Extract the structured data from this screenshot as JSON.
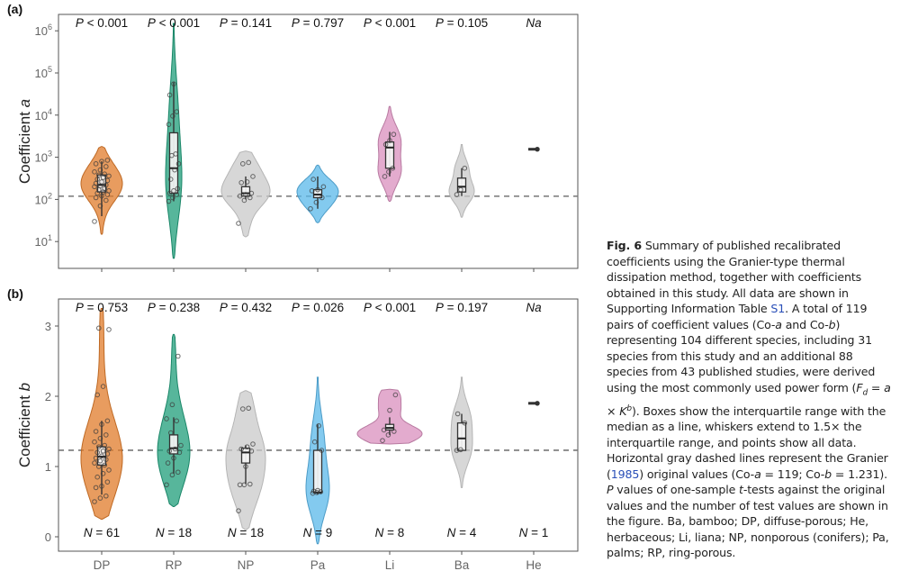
{
  "chart_data": [
    {
      "panel": "(a)",
      "type": "violin",
      "ylabel": "Coefficient a",
      "yscale": "log10",
      "ylim": [
        1,
        1000000
      ],
      "yticks": [
        10,
        100,
        1000,
        10000,
        100000,
        1000000
      ],
      "ytick_labels": [
        "10^1",
        "10^2",
        "10^3",
        "10^4",
        "10^5",
        "10^6"
      ],
      "categories": [
        "DP",
        "RP",
        "NP",
        "Pa",
        "Li",
        "Ba",
        "He"
      ],
      "reference_line": 119,
      "annotations_top": [
        "P < 0.001",
        "P < 0.001",
        "P = 0.141",
        "P = 0.797",
        "P < 0.001",
        "P = 0.105",
        "Na"
      ],
      "colors": [
        "#e07b2a",
        "#1f9e7a",
        "#c9c9c9",
        "#5ab8ea",
        "#d98fbd",
        "#c9c9c9",
        "#333333"
      ],
      "groups": [
        {
          "name": "DP",
          "q1": 150,
          "median": 220,
          "q3": 380,
          "whisker_low": 40,
          "whisker_high": 800,
          "violin_min": 15,
          "violin_max": 1800,
          "points": [
            30,
            70,
            95,
            110,
            120,
            130,
            140,
            150,
            160,
            170,
            180,
            200,
            210,
            220,
            240,
            260,
            280,
            300,
            330,
            360,
            380,
            400,
            450,
            500,
            600,
            700,
            800,
            850
          ]
        },
        {
          "name": "RP",
          "q1": 140,
          "median": 550,
          "q3": 3800,
          "whisker_low": 90,
          "whisker_high": 60000,
          "violin_min": 4,
          "violin_max": 1500000,
          "points": [
            90,
            110,
            130,
            140,
            160,
            180,
            300,
            500,
            700,
            1100,
            1200,
            6000,
            9500,
            12000,
            30000,
            55000
          ]
        },
        {
          "name": "NP",
          "q1": 120,
          "median": 140,
          "q3": 200,
          "whisker_low": 100,
          "whisker_high": 350,
          "violin_min": 13,
          "violin_max": 1400,
          "points": [
            27,
            95,
            110,
            120,
            130,
            140,
            250,
            260,
            350,
            700,
            750
          ]
        },
        {
          "name": "Pa",
          "q1": 110,
          "median": 130,
          "q3": 170,
          "whisker_low": 60,
          "whisker_high": 350,
          "violin_min": 28,
          "violin_max": 650,
          "points": [
            60,
            85,
            110,
            160,
            170,
            200,
            300
          ]
        },
        {
          "name": "Li",
          "q1": 550,
          "median": 1700,
          "q3": 2300,
          "whisker_low": 350,
          "whisker_high": 4000,
          "violin_min": 90,
          "violin_max": 16000,
          "points": [
            350,
            450,
            550,
            2000,
            2500,
            3500
          ]
        },
        {
          "name": "Ba",
          "q1": 150,
          "median": 200,
          "q3": 320,
          "whisker_low": 120,
          "whisker_high": 550,
          "violin_min": 38,
          "violin_max": 2000,
          "points": [
            130,
            170,
            550
          ]
        },
        {
          "name": "He",
          "q1": 1550,
          "median": 1550,
          "q3": 1550,
          "whisker_low": 1550,
          "whisker_high": 1550,
          "violin_min": 1550,
          "violin_max": 1550,
          "points": [
            1550
          ]
        }
      ]
    },
    {
      "panel": "(b)",
      "type": "violin",
      "ylabel": "Coefficient b",
      "yscale": "linear",
      "ylim": [
        -0.25,
        3.3
      ],
      "yticks": [
        0,
        1,
        2,
        3
      ],
      "ytick_labels": [
        "0",
        "1",
        "2",
        "3"
      ],
      "categories": [
        "DP",
        "RP",
        "NP",
        "Pa",
        "Li",
        "Ba",
        "He"
      ],
      "reference_line": 1.231,
      "annotations_top": [
        "P = 0.753",
        "P = 0.238",
        "P = 0.432",
        "P = 0.026",
        "P < 0.001",
        "P = 0.197",
        "Na"
      ],
      "annotations_bottom": [
        "N = 61",
        "N = 18",
        "N = 18",
        "N = 9",
        "N = 8",
        "N = 4",
        "N = 1"
      ],
      "colors": [
        "#e07b2a",
        "#1f9e7a",
        "#c9c9c9",
        "#5ab8ea",
        "#d98fbd",
        "#c9c9c9",
        "#333333"
      ],
      "groups": [
        {
          "name": "DP",
          "q1": 1.02,
          "median": 1.14,
          "q3": 1.28,
          "whisker_low": 0.6,
          "whisker_high": 1.65,
          "violin_min": 0.25,
          "violin_max": 3.25,
          "points": [
            0.5,
            0.55,
            0.58,
            0.7,
            0.72,
            0.78,
            0.85,
            0.9,
            0.95,
            1.0,
            1.02,
            1.05,
            1.08,
            1.1,
            1.12,
            1.15,
            1.18,
            1.2,
            1.22,
            1.25,
            1.28,
            1.3,
            1.35,
            1.4,
            1.45,
            1.5,
            1.6,
            1.65,
            2.02,
            2.14,
            2.95,
            2.97
          ]
        },
        {
          "name": "RP",
          "q1": 1.18,
          "median": 1.26,
          "q3": 1.45,
          "whisker_low": 0.9,
          "whisker_high": 1.7,
          "violin_min": 0.43,
          "violin_max": 2.88,
          "points": [
            0.74,
            0.88,
            0.92,
            1.05,
            1.12,
            1.2,
            1.22,
            1.25,
            1.3,
            1.48,
            1.65,
            1.68,
            1.88,
            2.57
          ]
        },
        {
          "name": "NP",
          "q1": 1.05,
          "median": 1.2,
          "q3": 1.26,
          "whisker_low": 0.75,
          "whisker_high": 1.3,
          "violin_min": 0.1,
          "violin_max": 2.08,
          "points": [
            0.37,
            0.74,
            0.75,
            0.74,
            1.0,
            1.22,
            1.25,
            1.28,
            1.32,
            1.82,
            1.83
          ]
        },
        {
          "name": "Pa",
          "q1": 0.63,
          "median": 0.63,
          "q3": 1.23,
          "whisker_low": 0.6,
          "whisker_high": 1.6,
          "violin_min": -0.1,
          "violin_max": 2.27,
          "points": [
            0.62,
            0.63,
            0.64,
            0.65,
            0.66,
            1.23,
            1.35,
            1.58
          ]
        },
        {
          "name": "Li",
          "q1": 1.52,
          "median": 1.55,
          "q3": 1.6,
          "whisker_low": 1.45,
          "whisker_high": 1.7,
          "violin_min": 1.32,
          "violin_max": 2.1,
          "points": [
            1.37,
            1.45,
            1.5,
            1.52,
            1.8,
            2.02
          ]
        },
        {
          "name": "Ba",
          "q1": 1.23,
          "median": 1.4,
          "q3": 1.62,
          "whisker_low": 1.23,
          "whisker_high": 1.75,
          "violin_min": 0.7,
          "violin_max": 2.27,
          "points": [
            1.23,
            1.24,
            1.62,
            1.75
          ]
        },
        {
          "name": "He",
          "q1": 1.9,
          "median": 1.9,
          "q3": 1.9,
          "whisker_low": 1.9,
          "whisker_high": 1.9,
          "violin_min": 1.9,
          "violin_max": 1.9,
          "points": [
            1.9
          ]
        }
      ]
    }
  ],
  "caption": {
    "label": "Fig. 6",
    "parts": [
      {
        "t": " Summary of published recalibrated coefficients using the Granier-type thermal dissipation method, together with coefficients obtained in this study. All data are shown in Supporting Information Table "
      },
      {
        "t": "S1",
        "link": true
      },
      {
        "t": ". A total of 119 pairs of coefficient values (Co-"
      },
      {
        "t": "a",
        "it": true
      },
      {
        "t": " and Co-"
      },
      {
        "t": "b",
        "it": true
      },
      {
        "t": ") representing 104 different species, including 31 species from this study and an additional 88 species from 43 published studies, were derived using the most commonly used power form ("
      },
      {
        "t": "F",
        "it": true
      },
      {
        "t": "d",
        "sub": true
      },
      {
        "t": " = "
      },
      {
        "t": "a",
        "it": true
      },
      {
        "t": " × "
      },
      {
        "t": "K",
        "it": true
      },
      {
        "t": "b",
        "sup": true
      },
      {
        "t": "). Boxes show the interquartile range with the median as a line, whiskers extend to 1.5× the interquartile range, and points show all data. Horizontal gray dashed lines represent the Granier ("
      },
      {
        "t": "1985",
        "link": true
      },
      {
        "t": ") original values (Co-"
      },
      {
        "t": "a",
        "it": true
      },
      {
        "t": " = 119; Co-"
      },
      {
        "t": "b",
        "it": true
      },
      {
        "t": " = 1.231). "
      },
      {
        "t": "P",
        "it": true
      },
      {
        "t": " values of one-sample "
      },
      {
        "t": "t",
        "it": true
      },
      {
        "t": "-tests against the original values and the number of test values are shown in the figure. Ba, bamboo; DP, diffuse-porous; He, herbaceous; Li, liana; NP, nonporous (conifers); Pa, palms; RP, ring-porous."
      }
    ]
  }
}
